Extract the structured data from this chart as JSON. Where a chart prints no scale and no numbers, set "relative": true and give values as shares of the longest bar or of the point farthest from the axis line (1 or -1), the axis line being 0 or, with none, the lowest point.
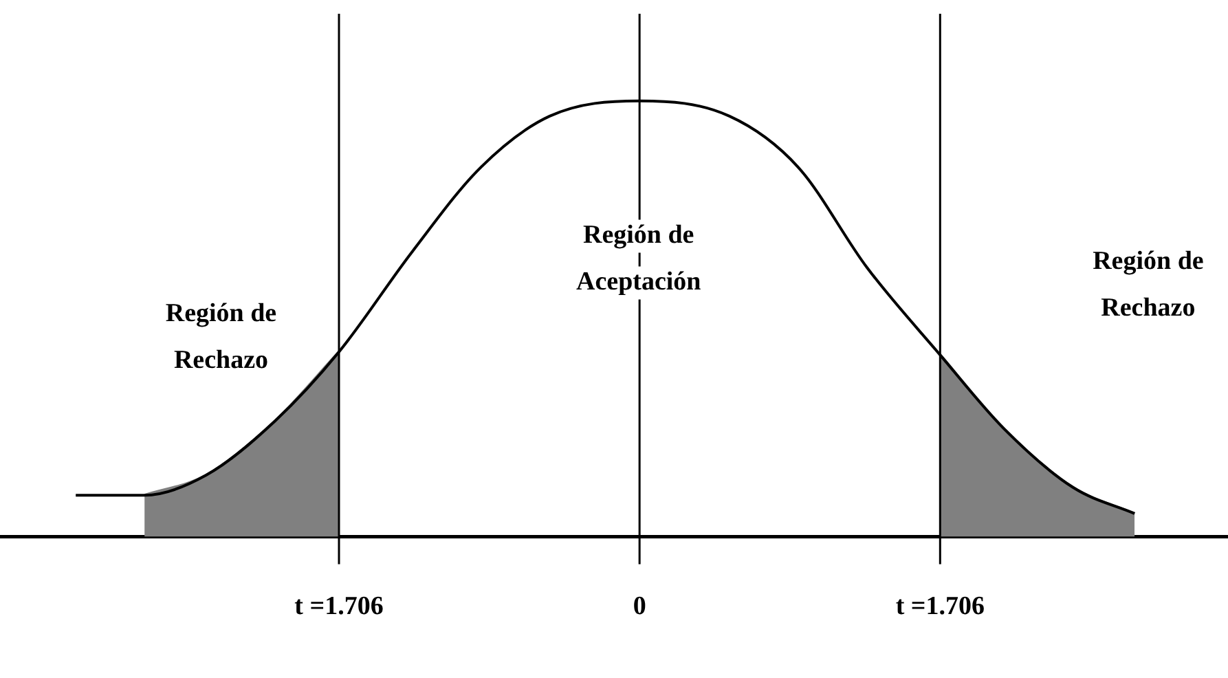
{
  "chart_data": {
    "type": "line",
    "relative": true,
    "xlim": [
      -3.63,
      3.34
    ],
    "xticks": [
      {
        "value": -1.706,
        "label": "t =1.706"
      },
      {
        "value": 0,
        "label": "0"
      },
      {
        "value": 1.706,
        "label": "t =1.706"
      }
    ],
    "tick_labels": "x",
    "marker": "none",
    "series": [
      {
        "color": "#000000",
        "x": [
          -3.2,
          -2.81,
          -2.46,
          -2.07,
          -1.706,
          -1.29,
          -0.9,
          -0.51,
          0,
          0.51,
          0.9,
          1.29,
          1.706,
          2.07,
          2.46,
          2.81
        ],
        "values": [
          0.095,
          0.095,
          0.141,
          0.265,
          0.424,
          0.654,
          0.848,
          0.965,
          1,
          0.965,
          0.848,
          0.618,
          0.417,
          0.247,
          0.113,
          0.053
        ]
      },
      {
        "type": "area",
        "color": "#808080",
        "x": [
          -2.81,
          -2.46,
          -2.07,
          -1.706
        ],
        "values": [
          0.095,
          0.141,
          0.265,
          0.424
        ]
      },
      {
        "type": "area",
        "color": "#808080",
        "x": [
          1.706,
          2.07,
          2.46,
          2.81
        ],
        "values": [
          0.417,
          0.247,
          0.113,
          0.053
        ]
      }
    ],
    "ref_lines": [
      {
        "axis": "x",
        "value": -1.706,
        "color": "#000000"
      },
      {
        "axis": "x",
        "value": 0,
        "color": "#000000"
      },
      {
        "axis": "x",
        "value": 1.706,
        "color": "#000000"
      }
    ],
    "annotations": [
      "Región de\nRechazo",
      "Región de\nAceptación",
      "Región de\nRechazo"
    ]
  }
}
